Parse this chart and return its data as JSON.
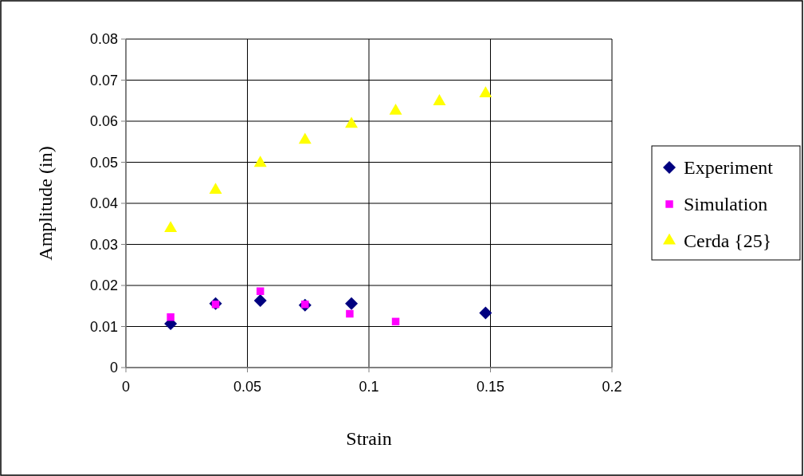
{
  "chart_data": {
    "type": "scatter",
    "xlabel": "Strain",
    "ylabel": "Amplitude (in)",
    "xlim": [
      0,
      0.2
    ],
    "xticks": [
      0,
      0.05,
      0.1,
      0.15,
      0.2
    ],
    "ylim": [
      0,
      0.08
    ],
    "yticks": [
      0,
      0.01,
      0.02,
      0.03,
      0.04,
      0.05,
      0.06,
      0.07,
      0.08
    ],
    "grid": true,
    "legend": "right",
    "series": [
      {
        "name": "Experiment",
        "color": "#000080",
        "marker": "diamond",
        "x": [
          0.0184,
          0.0369,
          0.0553,
          0.0737,
          0.0928,
          0.148
        ],
        "values": [
          0.0107,
          0.0156,
          0.0163,
          0.0152,
          0.0156,
          0.0133
        ]
      },
      {
        "name": "Simulation",
        "color": "#ff00ff",
        "marker": "square",
        "x": [
          0.0184,
          0.0369,
          0.0553,
          0.0737,
          0.0921,
          0.111
        ],
        "values": [
          0.0123,
          0.0154,
          0.0186,
          0.0154,
          0.0131,
          0.0112
        ]
      },
      {
        "name": "Cerda {25}",
        "color": "#ffff00",
        "marker": "triangle",
        "x": [
          0.0184,
          0.0369,
          0.0553,
          0.0737,
          0.0928,
          0.111,
          0.129,
          0.148
        ],
        "values": [
          0.0339,
          0.0432,
          0.0498,
          0.0554,
          0.0593,
          0.0625,
          0.0648,
          0.0667
        ]
      }
    ]
  }
}
